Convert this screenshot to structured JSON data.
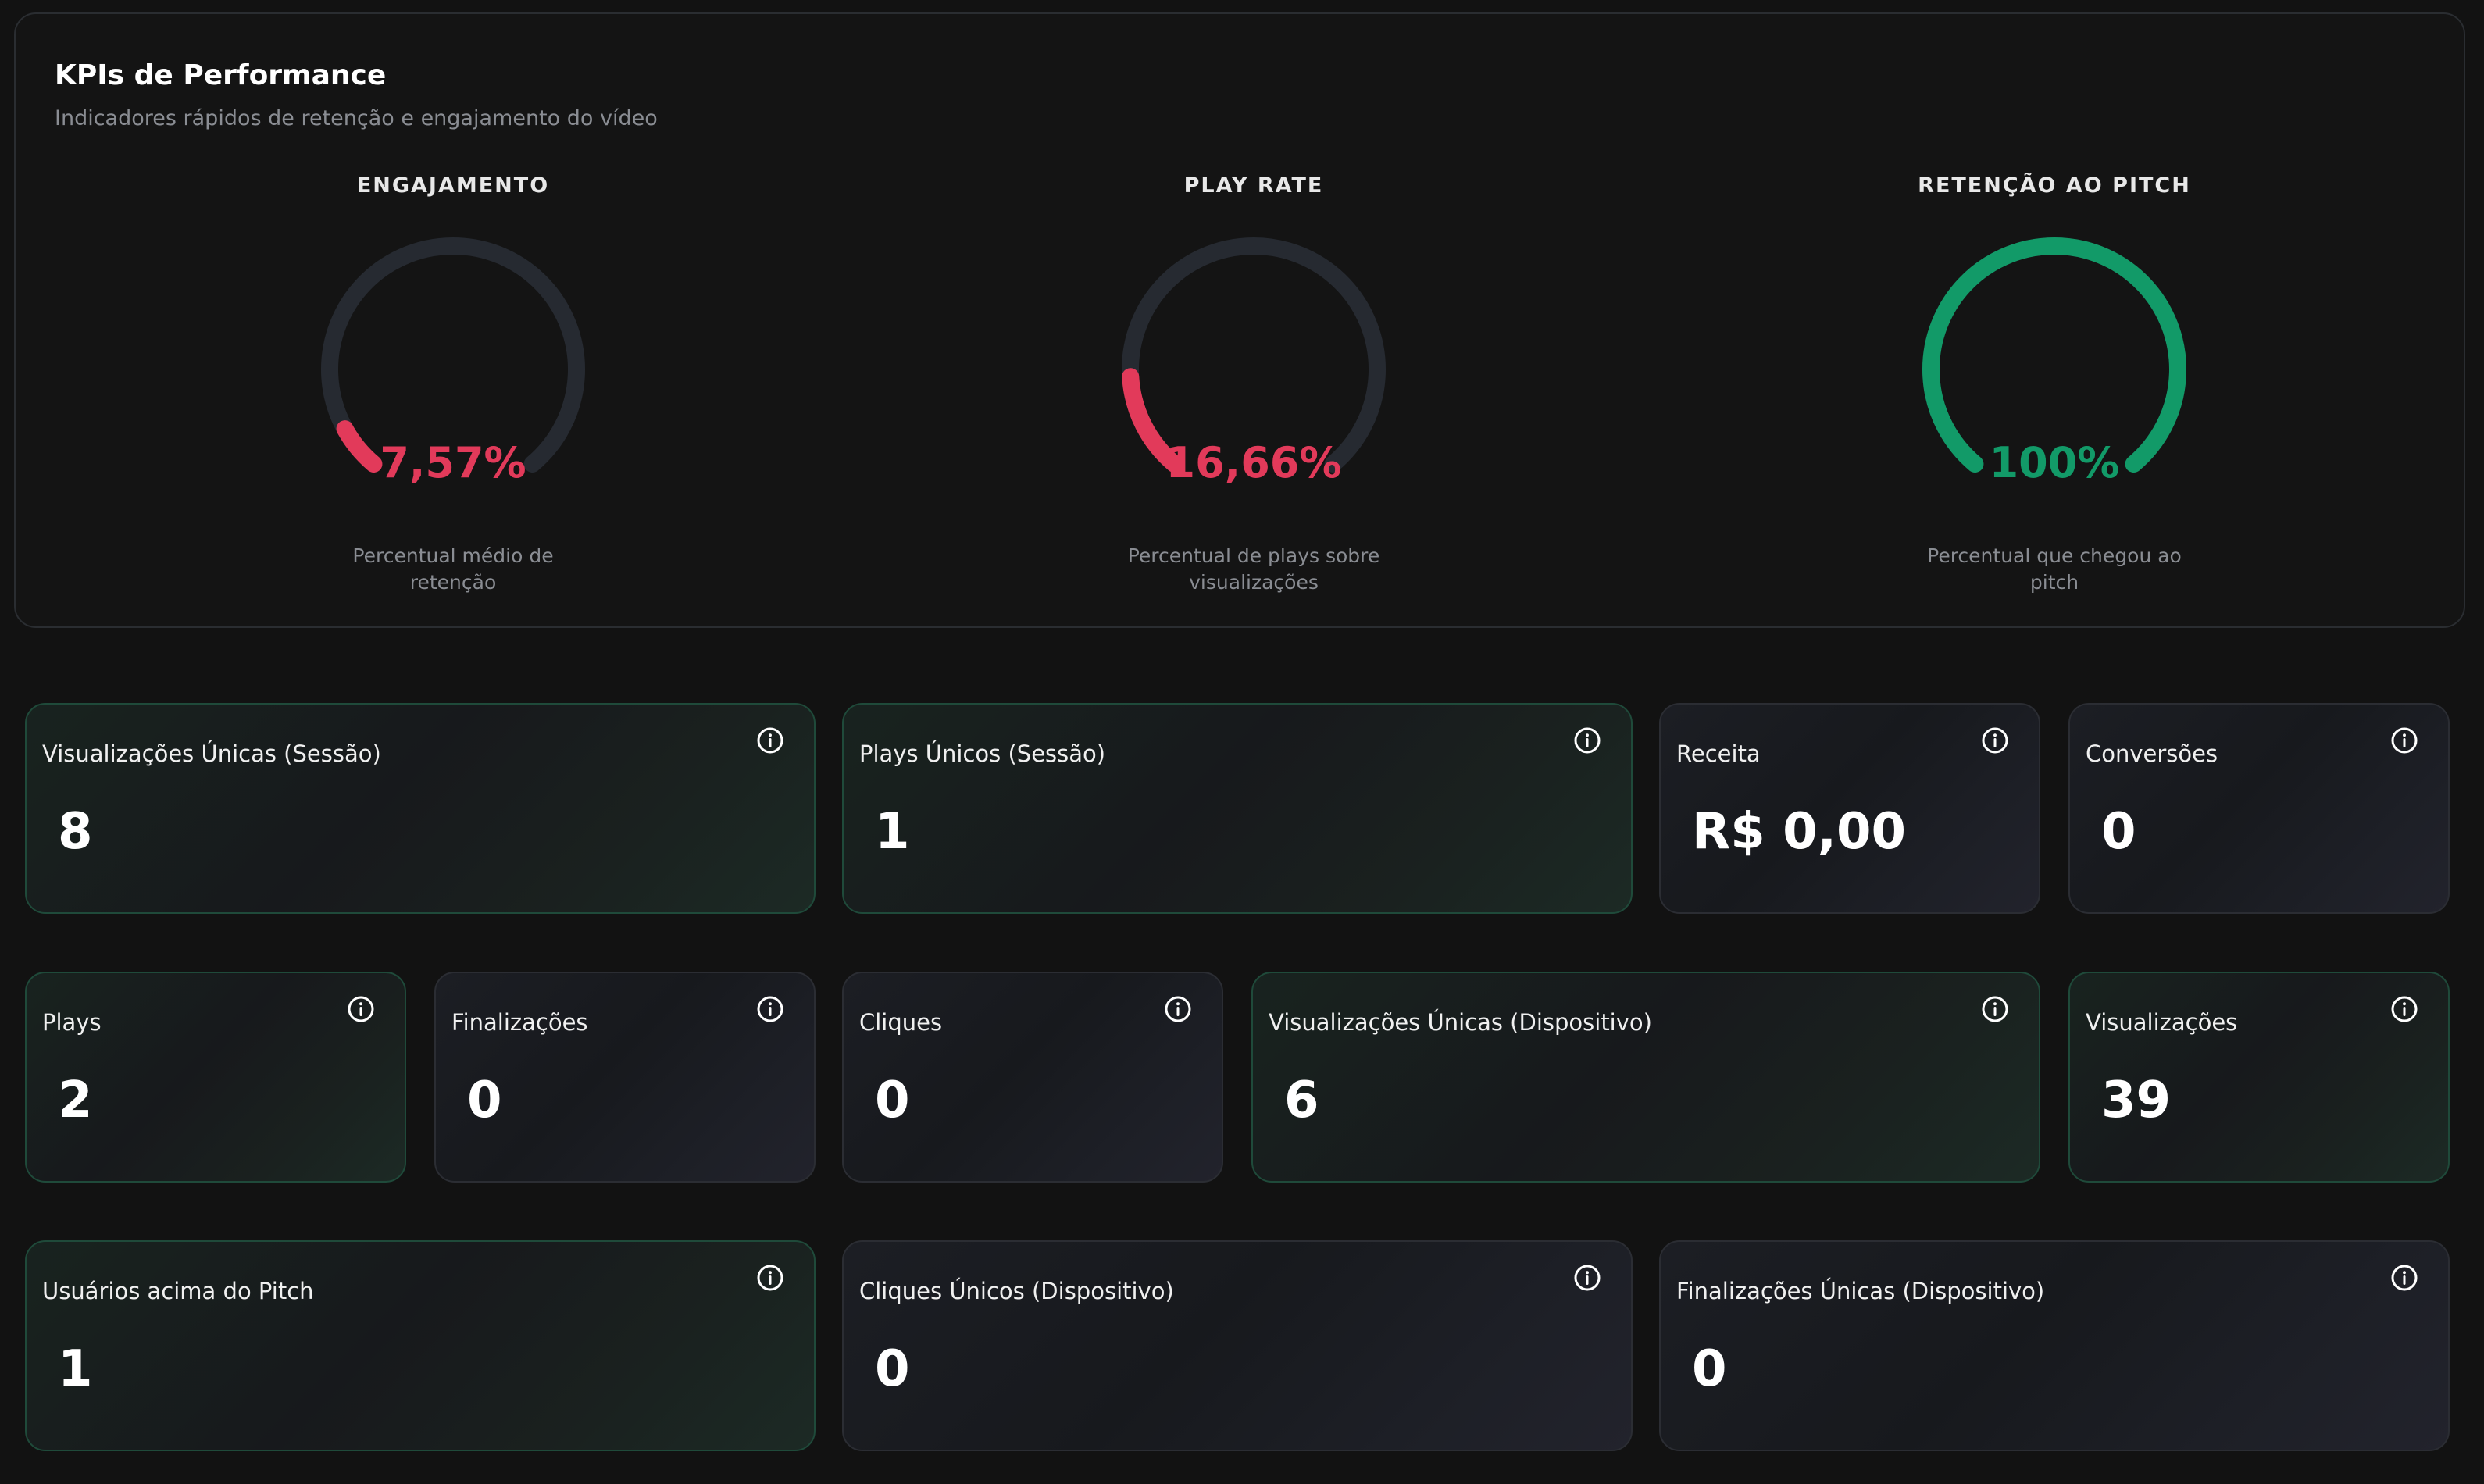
{
  "kpi_panel": {
    "title": "KPIs de Performance",
    "subtitle": "Indicadores rápidos de retenção e engajamento do vídeo",
    "gauges": [
      {
        "label": "ENGAJAMENTO",
        "value_text": "7,57%",
        "value": 7.57,
        "description": "Percentual médio de retenção",
        "color": "#e23a5a"
      },
      {
        "label": "PLAY RATE",
        "value_text": "16,66%",
        "value": 16.66,
        "description": "Percentual de plays sobre visualizações",
        "color": "#e23a5a"
      },
      {
        "label": "RETENÇÃO AO PITCH",
        "value_text": "100%",
        "value": 100,
        "description": "Percentual que chegou ao pitch",
        "color": "#129a68"
      }
    ],
    "track_color": "#262a31"
  },
  "cards": [
    {
      "label": "Visualizações Únicas (Sessão)",
      "value": "8"
    },
    {
      "label": "Plays Únicos (Sessão)",
      "value": "1"
    },
    {
      "label": "Receita",
      "value": "R$ 0,00"
    },
    {
      "label": "Conversões",
      "value": "0"
    },
    {
      "label": "Plays",
      "value": "2"
    },
    {
      "label": "Finalizações",
      "value": "0"
    },
    {
      "label": "Cliques",
      "value": "0"
    },
    {
      "label": "Visualizações Únicas (Dispositivo)",
      "value": "6"
    },
    {
      "label": "Visualizações",
      "value": "39"
    },
    {
      "label": "Usuários acima do Pitch",
      "value": "1"
    },
    {
      "label": "Cliques Únicos (Dispositivo)",
      "value": "0"
    },
    {
      "label": "Finalizações Únicas (Dispositivo)",
      "value": "0"
    }
  ],
  "icons": {
    "info": "info-icon"
  }
}
